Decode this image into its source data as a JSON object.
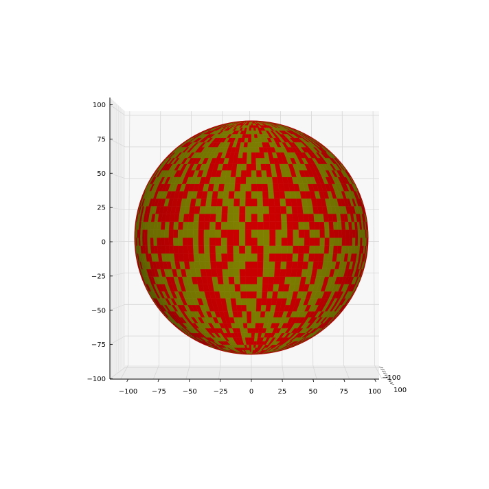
{
  "chart_data": {
    "type": "surface3d",
    "title": "",
    "xlabel": "",
    "ylabel": "",
    "zlabel": "",
    "shape": "sphere",
    "radius": 100,
    "center": [
      0,
      0,
      0
    ],
    "facecolors": [
      "#cc0000",
      "#808000"
    ],
    "xlim": [
      -110,
      110
    ],
    "ylim": [
      -110,
      110
    ],
    "zlim": [
      -100,
      100
    ],
    "x_ticks": [
      "−100",
      "−75",
      "−50",
      "−25",
      "0",
      "25",
      "50",
      "75",
      "100"
    ],
    "z_ticks": [
      "100",
      "75",
      "50",
      "25",
      "0",
      "−25",
      "−50",
      "−75",
      "−100"
    ],
    "y_ticks_visible": [
      "−100",
      "100"
    ],
    "grid": true,
    "pane_color": "#f2f2f2"
  },
  "colors": {
    "red": "#cc0000",
    "olive": "#808000",
    "pane": "#f7f7f7",
    "grid": "#cfcfcf"
  }
}
